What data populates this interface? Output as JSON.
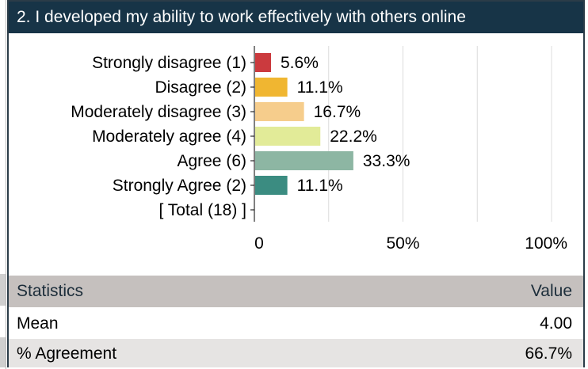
{
  "question_title": "2. I developed my ability to work effectively with others online",
  "chart_data": {
    "type": "bar",
    "orientation": "horizontal",
    "categories": [
      "Strongly disagree (1)",
      "Disagree (2)",
      "Moderately disagree (3)",
      "Moderately agree (4)",
      "Agree (6)",
      "Strongly Agree (2)",
      "[ Total (18) ]"
    ],
    "values": [
      5.6,
      11.1,
      16.7,
      22.2,
      33.3,
      11.1,
      null
    ],
    "value_labels": [
      "5.6%",
      "11.1%",
      "16.7%",
      "22.2%",
      "33.3%",
      "11.1%",
      ""
    ],
    "colors": [
      "#cb3a3e",
      "#f0b631",
      "#f6cd8c",
      "#e2eb98",
      "#8db6a3",
      "#3b8c81",
      null
    ],
    "xlim": [
      0,
      100
    ],
    "x_ticks": [
      0,
      50,
      100
    ],
    "x_tick_labels": [
      "0",
      "50%",
      "100%"
    ],
    "grid": true
  },
  "statistics": {
    "header": {
      "label": "Statistics",
      "value": "Value"
    },
    "rows": [
      {
        "label": "Mean",
        "value": "4.00"
      },
      {
        "label": "% Agreement",
        "value": "66.7%"
      }
    ]
  }
}
